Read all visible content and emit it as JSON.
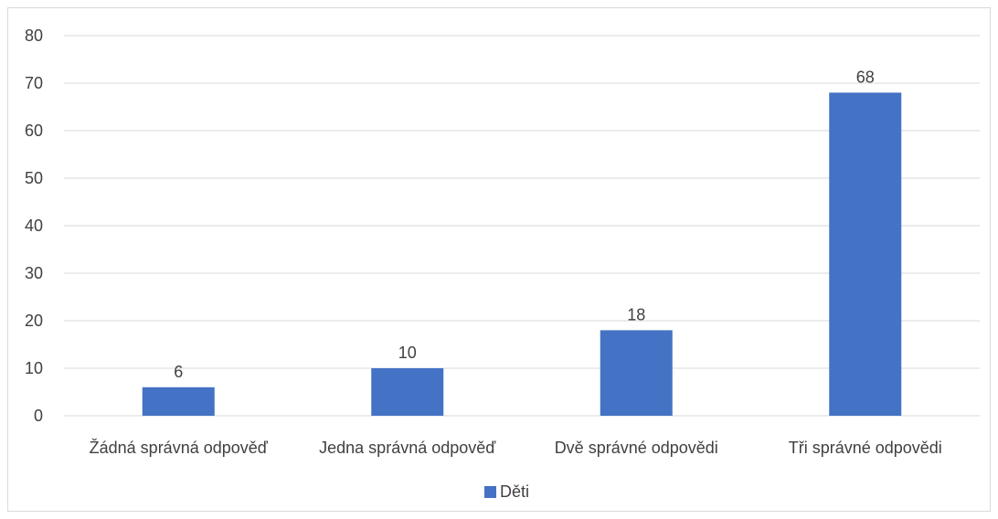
{
  "chart_data": {
    "type": "bar",
    "categories": [
      "Žádná správná odpověď",
      "Jedna správná odpověď",
      "Dvě správné odpovědi",
      "Tři správné odpovědi"
    ],
    "series": [
      {
        "name": "Děti",
        "values": [
          6,
          10,
          18,
          68
        ],
        "color": "#4472c4"
      }
    ],
    "ylim": [
      0,
      80
    ],
    "yticks": [
      0,
      10,
      20,
      30,
      40,
      50,
      60,
      70,
      80
    ],
    "grid": true,
    "legend": "bottom",
    "data_labels": true
  }
}
